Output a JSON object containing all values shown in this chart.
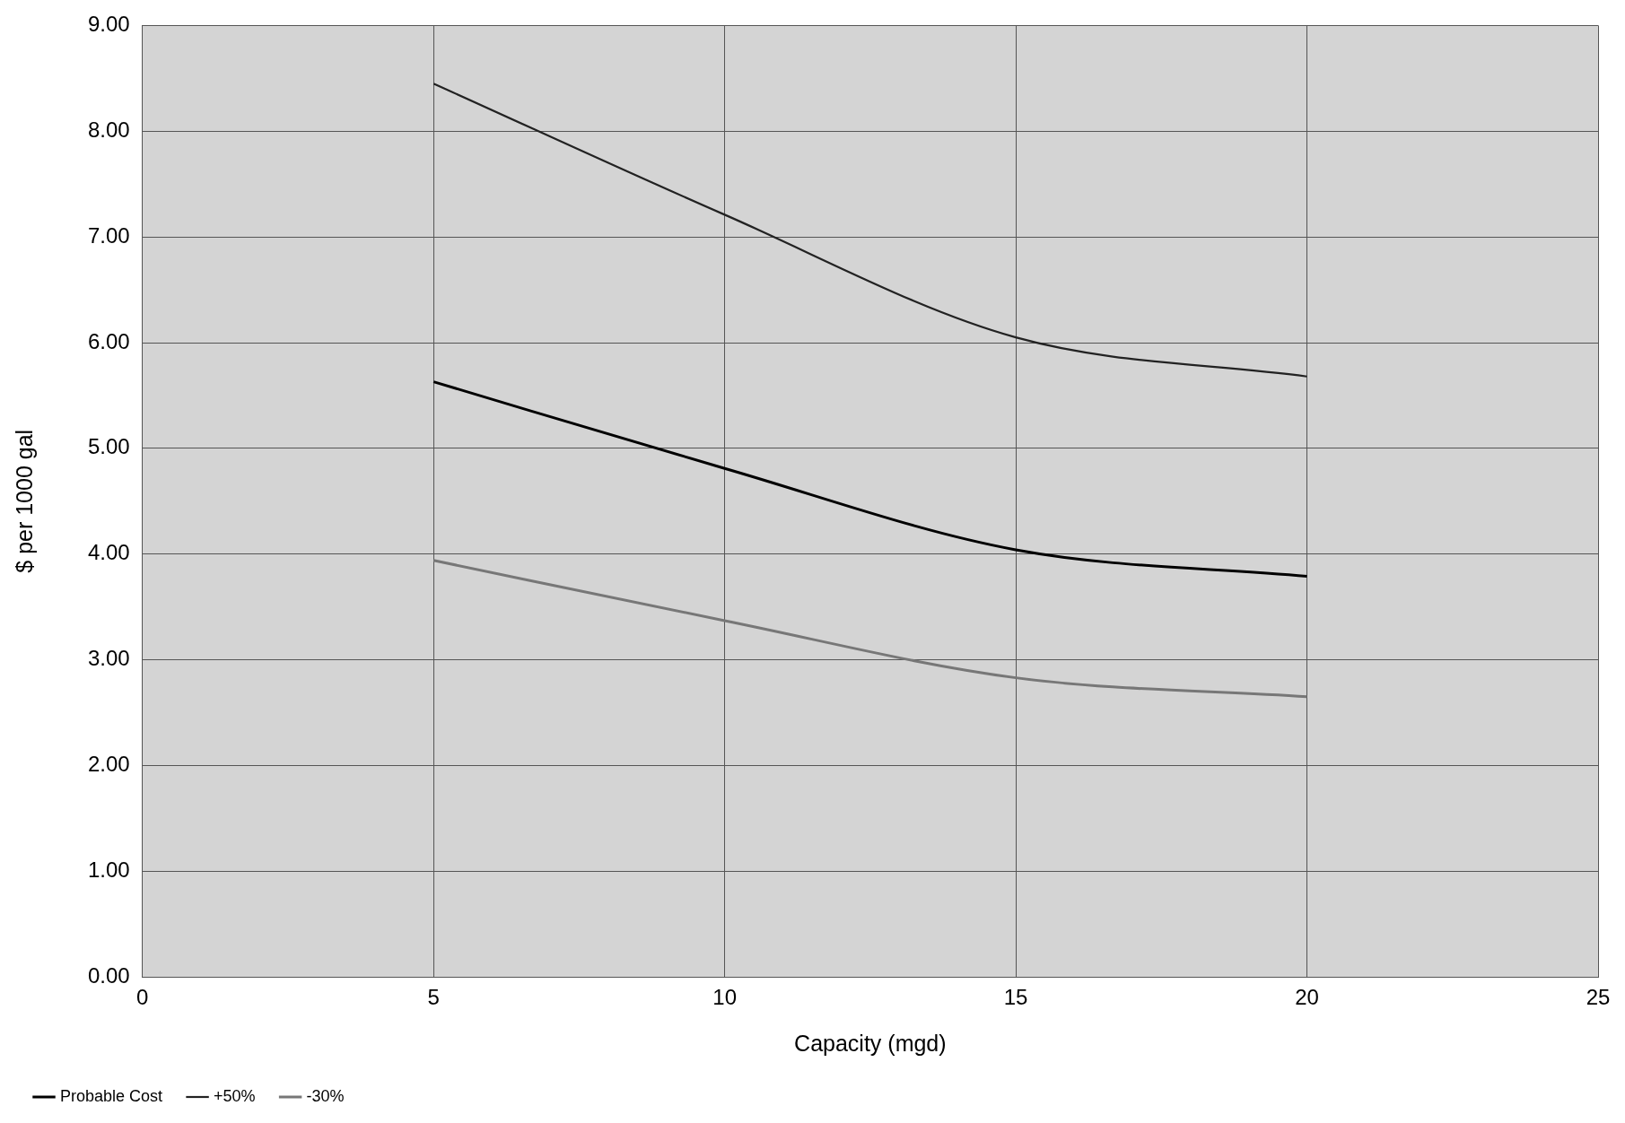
{
  "chart_data": {
    "type": "line",
    "xlabel": "Capacity (mgd)",
    "ylabel": "$ per 1000 gal",
    "x": [
      5,
      10,
      15,
      20
    ],
    "series": [
      {
        "name": "Probable Cost",
        "color": "#000000",
        "values": [
          5.63,
          4.81,
          4.04,
          3.79
        ]
      },
      {
        "name": "+50%",
        "color": "#222222",
        "values": [
          8.45,
          7.21,
          6.05,
          5.68
        ]
      },
      {
        "name": "-30%",
        "color": "#777777",
        "values": [
          3.94,
          3.37,
          2.83,
          2.65
        ]
      }
    ],
    "xlim": [
      0,
      25
    ],
    "xticks": [
      0,
      5,
      10,
      15,
      20,
      25
    ],
    "ylim": [
      0,
      9
    ],
    "yticks": [
      {
        "value": 0,
        "label": "0.00"
      },
      {
        "value": 1,
        "label": "1.00"
      },
      {
        "value": 2,
        "label": "2.00"
      },
      {
        "value": 3,
        "label": "3.00"
      },
      {
        "value": 4,
        "label": "4.00"
      },
      {
        "value": 5,
        "label": "5.00"
      },
      {
        "value": 6,
        "label": "6.00"
      },
      {
        "value": 7,
        "label": "7.00"
      },
      {
        "value": 8,
        "label": "8.00"
      },
      {
        "value": 9,
        "label": "9.00"
      }
    ],
    "grid": true,
    "legend": "bottom left",
    "marker": "none",
    "line_style": "solid"
  }
}
